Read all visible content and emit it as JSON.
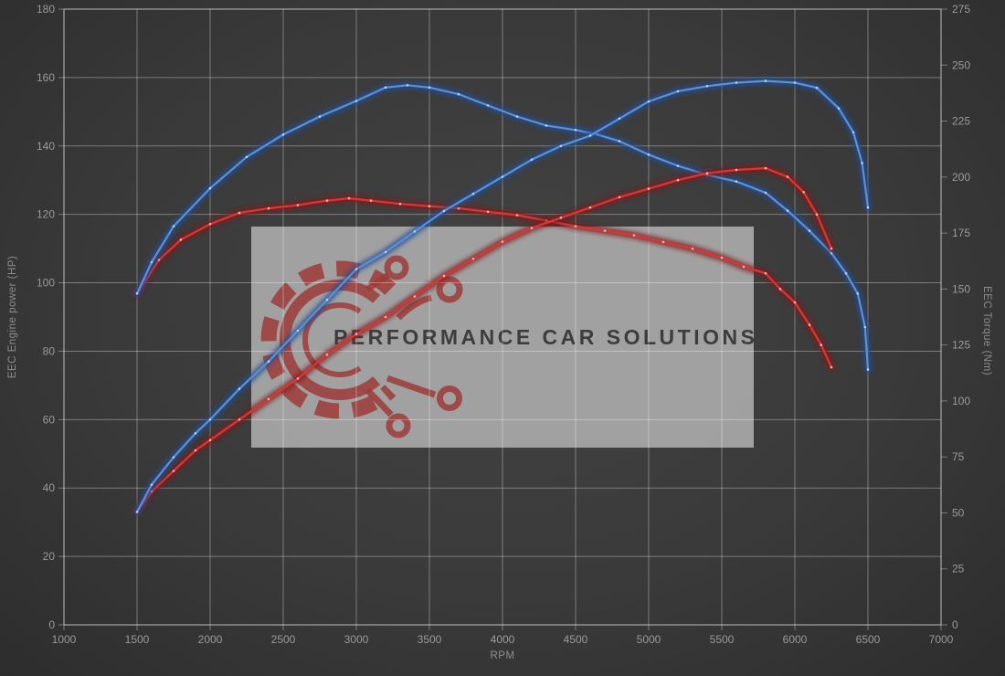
{
  "watermark": {
    "text": "PERFORMANCE CAR SOLUTIONS",
    "logo_icon": "gear-circuit-icon"
  },
  "chart_data": {
    "type": "line",
    "title": "",
    "xlabel": "RPM",
    "ylabel_left": "EEC Engine power (HP)",
    "ylabel_right": "EEC Torque (Nm)",
    "xlim": [
      1000,
      7000
    ],
    "ylim_left": [
      0,
      180
    ],
    "ylim_right": [
      0,
      275
    ],
    "x_ticks": [
      1000,
      1500,
      2000,
      2500,
      3000,
      3500,
      4000,
      4500,
      5000,
      5500,
      6000,
      6500,
      7000
    ],
    "y_ticks_left": [
      0,
      20,
      40,
      60,
      80,
      100,
      120,
      140,
      160,
      180
    ],
    "y_ticks_right": [
      0,
      25,
      50,
      75,
      100,
      125,
      150,
      175,
      200,
      225,
      250,
      275
    ],
    "grid": true,
    "legend": "none",
    "colors": {
      "background": "#3a3a3a",
      "watermark_panel": "#a9a9a9",
      "logo": "#9c3b38",
      "watermark_text": "#3d3d3d",
      "tick_label": "#9a9a9a",
      "axis_title": "#8d8d8d",
      "blue": "#5b92d6",
      "red": "#e23333"
    },
    "series": [
      {
        "name": "red-torque",
        "axis": "right",
        "unit": "Nm",
        "color": "#e23333",
        "glow": "#7d1717",
        "dot": "#ffb8b8",
        "points": [
          [
            1500,
            148
          ],
          [
            1650,
            163
          ],
          [
            1800,
            172
          ],
          [
            2000,
            179
          ],
          [
            2200,
            184
          ],
          [
            2400,
            186
          ],
          [
            2600,
            187.5
          ],
          [
            2800,
            189.5
          ],
          [
            2950,
            190.5
          ],
          [
            3100,
            189.5
          ],
          [
            3300,
            188
          ],
          [
            3500,
            187
          ],
          [
            3700,
            186
          ],
          [
            3900,
            184.5
          ],
          [
            4100,
            183
          ],
          [
            4300,
            180.5
          ],
          [
            4500,
            178
          ],
          [
            4700,
            176
          ],
          [
            4900,
            174
          ],
          [
            5100,
            171
          ],
          [
            5300,
            168
          ],
          [
            5500,
            164
          ],
          [
            5650,
            160
          ],
          [
            5800,
            157
          ],
          [
            5900,
            150
          ],
          [
            6000,
            144
          ],
          [
            6100,
            134
          ],
          [
            6180,
            125
          ],
          [
            6250,
            115
          ]
        ]
      },
      {
        "name": "blue-torque",
        "axis": "right",
        "unit": "Nm",
        "color": "#5b92d6",
        "glow": "#1f4d94",
        "dot": "#bcd6f2",
        "points": [
          [
            1500,
            148
          ],
          [
            1600,
            162
          ],
          [
            1750,
            178
          ],
          [
            2000,
            195
          ],
          [
            2250,
            209
          ],
          [
            2500,
            219
          ],
          [
            2750,
            227
          ],
          [
            3000,
            234
          ],
          [
            3200,
            240
          ],
          [
            3350,
            241
          ],
          [
            3500,
            240
          ],
          [
            3700,
            237
          ],
          [
            3900,
            232
          ],
          [
            4100,
            227
          ],
          [
            4300,
            223
          ],
          [
            4500,
            221
          ],
          [
            4650,
            219
          ],
          [
            4800,
            216
          ],
          [
            5000,
            210
          ],
          [
            5200,
            205
          ],
          [
            5400,
            201
          ],
          [
            5600,
            198
          ],
          [
            5800,
            193
          ],
          [
            5950,
            185
          ],
          [
            6100,
            176
          ],
          [
            6250,
            166
          ],
          [
            6350,
            157
          ],
          [
            6430,
            148
          ],
          [
            6480,
            133
          ],
          [
            6500,
            114
          ]
        ]
      },
      {
        "name": "red-power",
        "axis": "left",
        "unit": "HP",
        "color": "#e23333",
        "glow": "#7d1717",
        "dot": "#ffb8b8",
        "points": [
          [
            1500,
            33
          ],
          [
            1600,
            39
          ],
          [
            1750,
            45
          ],
          [
            1900,
            51
          ],
          [
            2000,
            54
          ],
          [
            2200,
            60
          ],
          [
            2400,
            66
          ],
          [
            2600,
            72
          ],
          [
            2800,
            79
          ],
          [
            3000,
            85
          ],
          [
            3200,
            90
          ],
          [
            3400,
            96
          ],
          [
            3600,
            102
          ],
          [
            3800,
            107
          ],
          [
            4000,
            112
          ],
          [
            4200,
            116
          ],
          [
            4400,
            119
          ],
          [
            4600,
            122
          ],
          [
            4800,
            125
          ],
          [
            5000,
            127.5
          ],
          [
            5200,
            130
          ],
          [
            5400,
            132
          ],
          [
            5600,
            133
          ],
          [
            5800,
            133.5
          ],
          [
            5950,
            131
          ],
          [
            6060,
            126.5
          ],
          [
            6150,
            120
          ],
          [
            6250,
            110
          ]
        ]
      },
      {
        "name": "blue-power",
        "axis": "left",
        "unit": "HP",
        "color": "#5b92d6",
        "glow": "#1f4d94",
        "dot": "#bcd6f2",
        "points": [
          [
            1500,
            33
          ],
          [
            1600,
            41
          ],
          [
            1750,
            49
          ],
          [
            1900,
            56
          ],
          [
            2000,
            60
          ],
          [
            2200,
            69
          ],
          [
            2400,
            77
          ],
          [
            2600,
            86
          ],
          [
            2800,
            95
          ],
          [
            3000,
            104
          ],
          [
            3200,
            109
          ],
          [
            3400,
            115
          ],
          [
            3600,
            121
          ],
          [
            3800,
            126
          ],
          [
            4000,
            131
          ],
          [
            4200,
            136
          ],
          [
            4400,
            140
          ],
          [
            4600,
            143
          ],
          [
            4800,
            148
          ],
          [
            5000,
            153
          ],
          [
            5200,
            156
          ],
          [
            5400,
            157.5
          ],
          [
            5600,
            158.5
          ],
          [
            5800,
            159
          ],
          [
            6000,
            158.5
          ],
          [
            6150,
            157
          ],
          [
            6300,
            151
          ],
          [
            6400,
            144
          ],
          [
            6460,
            135
          ],
          [
            6500,
            122
          ]
        ]
      }
    ]
  }
}
